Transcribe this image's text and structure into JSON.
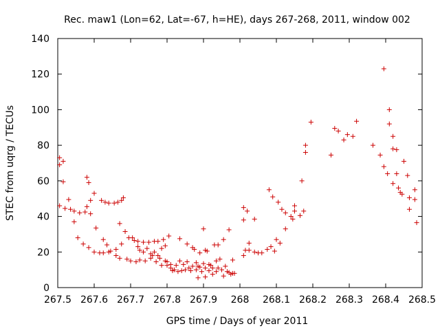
{
  "chart_data": {
    "type": "scatter",
    "title": "Rec. maw1 (Lon=62, Lat=-67, h=HE), days 267-268, 2011, window 002",
    "xlabel": "GPS time / Days of year 2011",
    "ylabel": "STEC from uqrg / TECUs",
    "xlim": [
      267.5,
      268.5
    ],
    "ylim": [
      0,
      140
    ],
    "xticks": [
      267.5,
      267.6,
      267.7,
      267.8,
      267.9,
      268,
      268.1,
      268.2,
      268.3,
      268.4,
      268.5
    ],
    "xtick_labels": [
      "267.5",
      "267.6",
      "267.7",
      "267.8",
      "267.9",
      "268",
      "268.1",
      "268.2",
      "268.3",
      "268.4",
      "268.5"
    ],
    "yticks": [
      0,
      20,
      40,
      60,
      80,
      100,
      120,
      140
    ],
    "ytick_labels": [
      "0",
      "20",
      "40",
      "60",
      "80",
      "100",
      "120",
      "140"
    ],
    "grid": false,
    "marker": "+",
    "color": "#cc0000",
    "points": [
      [
        267.505,
        73
      ],
      [
        267.505,
        69
      ],
      [
        267.515,
        71
      ],
      [
        267.515,
        59.5
      ],
      [
        267.505,
        46
      ],
      [
        267.52,
        44.5
      ],
      [
        267.53,
        49.5
      ],
      [
        267.535,
        44
      ],
      [
        267.545,
        43
      ],
      [
        267.545,
        37
      ],
      [
        267.555,
        28
      ],
      [
        267.56,
        42
      ],
      [
        267.57,
        24.5
      ],
      [
        267.575,
        42.5
      ],
      [
        267.58,
        62
      ],
      [
        267.585,
        59
      ],
      [
        267.58,
        45.5
      ],
      [
        267.59,
        49
      ],
      [
        267.59,
        41.5
      ],
      [
        267.585,
        22.5
      ],
      [
        267.6,
        53
      ],
      [
        267.605,
        33.5
      ],
      [
        267.6,
        20
      ],
      [
        267.615,
        19.5
      ],
      [
        267.62,
        49
      ],
      [
        267.625,
        27
      ],
      [
        267.63,
        48
      ],
      [
        267.635,
        24
      ],
      [
        267.625,
        19.5
      ],
      [
        267.64,
        47.5
      ],
      [
        267.64,
        20
      ],
      [
        267.645,
        20.5
      ],
      [
        267.655,
        47.5
      ],
      [
        267.66,
        21.5
      ],
      [
        267.665,
        48
      ],
      [
        267.66,
        18
      ],
      [
        267.67,
        36
      ],
      [
        267.675,
        24.5
      ],
      [
        267.67,
        16.5
      ],
      [
        267.675,
        49
      ],
      [
        267.68,
        50.5
      ],
      [
        267.685,
        31.5
      ],
      [
        267.69,
        16
      ],
      [
        267.695,
        28
      ],
      [
        267.7,
        15
      ],
      [
        267.705,
        28
      ],
      [
        267.71,
        26.5
      ],
      [
        267.715,
        14.5
      ],
      [
        267.72,
        26
      ],
      [
        267.72,
        23
      ],
      [
        267.725,
        21
      ],
      [
        267.725,
        15.5
      ],
      [
        267.735,
        25.5
      ],
      [
        267.735,
        20
      ],
      [
        267.74,
        15
      ],
      [
        267.745,
        22
      ],
      [
        267.75,
        25.5
      ],
      [
        267.755,
        19
      ],
      [
        267.755,
        16.5
      ],
      [
        267.76,
        18
      ],
      [
        267.765,
        26
      ],
      [
        267.765,
        20
      ],
      [
        267.77,
        14.5
      ],
      [
        267.775,
        26
      ],
      [
        267.775,
        18
      ],
      [
        267.78,
        16.5
      ],
      [
        267.785,
        12.5
      ],
      [
        267.785,
        22
      ],
      [
        267.79,
        27
      ],
      [
        267.795,
        23.5
      ],
      [
        267.795,
        15
      ],
      [
        267.8,
        14.5
      ],
      [
        267.8,
        12.5
      ],
      [
        267.805,
        29
      ],
      [
        267.81,
        13
      ],
      [
        267.81,
        11
      ],
      [
        267.815,
        9.5
      ],
      [
        267.82,
        10
      ],
      [
        267.825,
        12.5
      ],
      [
        267.83,
        9
      ],
      [
        267.835,
        27.5
      ],
      [
        267.835,
        15
      ],
      [
        267.84,
        9.5
      ],
      [
        267.845,
        13
      ],
      [
        267.85,
        10
      ],
      [
        267.855,
        24.5
      ],
      [
        267.855,
        14.5
      ],
      [
        267.86,
        11
      ],
      [
        267.865,
        9.5
      ],
      [
        267.87,
        22.5
      ],
      [
        267.87,
        12
      ],
      [
        267.875,
        21.5
      ],
      [
        267.88,
        10
      ],
      [
        267.88,
        14
      ],
      [
        267.885,
        12
      ],
      [
        267.885,
        5.5
      ],
      [
        267.89,
        19.5
      ],
      [
        267.89,
        11.5
      ],
      [
        267.895,
        9
      ],
      [
        267.9,
        33
      ],
      [
        267.9,
        13.5
      ],
      [
        267.905,
        21
      ],
      [
        267.905,
        11
      ],
      [
        267.905,
        6
      ],
      [
        267.91,
        20.5
      ],
      [
        267.915,
        13
      ],
      [
        267.915,
        9.5
      ],
      [
        267.92,
        12.5
      ],
      [
        267.925,
        11
      ],
      [
        267.925,
        7.5
      ],
      [
        267.93,
        24
      ],
      [
        267.935,
        9
      ],
      [
        267.935,
        15
      ],
      [
        267.94,
        24
      ],
      [
        267.94,
        11
      ],
      [
        267.945,
        16
      ],
      [
        267.95,
        10
      ],
      [
        267.955,
        6.5
      ],
      [
        267.955,
        27
      ],
      [
        267.96,
        12
      ],
      [
        267.965,
        9
      ],
      [
        267.97,
        32.5
      ],
      [
        267.97,
        8.5
      ],
      [
        267.975,
        7.5
      ],
      [
        267.98,
        8
      ],
      [
        267.985,
        8
      ],
      [
        267.98,
        15.5
      ],
      [
        268.01,
        45
      ],
      [
        268.01,
        38
      ],
      [
        268.01,
        18
      ],
      [
        268.015,
        21
      ],
      [
        268.02,
        43
      ],
      [
        268.025,
        25
      ],
      [
        268.025,
        21
      ],
      [
        268.04,
        38.5
      ],
      [
        268.04,
        20
      ],
      [
        268.05,
        19.5
      ],
      [
        268.06,
        19.5
      ],
      [
        268.075,
        21.5
      ],
      [
        268.085,
        23
      ],
      [
        268.08,
        55
      ],
      [
        268.09,
        51
      ],
      [
        268.095,
        20.5
      ],
      [
        268.1,
        27
      ],
      [
        268.105,
        48
      ],
      [
        268.11,
        25
      ],
      [
        268.115,
        44
      ],
      [
        268.125,
        42
      ],
      [
        268.125,
        33
      ],
      [
        268.14,
        40
      ],
      [
        268.145,
        38.5
      ],
      [
        268.15,
        46
      ],
      [
        268.15,
        43
      ],
      [
        268.165,
        40.5
      ],
      [
        268.17,
        60
      ],
      [
        268.175,
        43
      ],
      [
        268.18,
        80
      ],
      [
        268.18,
        76
      ],
      [
        268.195,
        93
      ],
      [
        268.25,
        74.5
      ],
      [
        268.26,
        89.5
      ],
      [
        268.27,
        88
      ],
      [
        268.285,
        83
      ],
      [
        268.295,
        86
      ],
      [
        268.31,
        85
      ],
      [
        268.32,
        93.5
      ],
      [
        268.365,
        80
      ],
      [
        268.385,
        74.5
      ],
      [
        268.395,
        123
      ],
      [
        268.395,
        68
      ],
      [
        268.405,
        64
      ],
      [
        268.41,
        100
      ],
      [
        268.41,
        92
      ],
      [
        268.42,
        85
      ],
      [
        268.42,
        78
      ],
      [
        268.42,
        58.5
      ],
      [
        268.43,
        77.5
      ],
      [
        268.43,
        64
      ],
      [
        268.435,
        56
      ],
      [
        268.44,
        53.5
      ],
      [
        268.445,
        52.5
      ],
      [
        268.45,
        71
      ],
      [
        268.46,
        63
      ],
      [
        268.465,
        50.5
      ],
      [
        268.465,
        44
      ],
      [
        268.48,
        55
      ],
      [
        268.48,
        49.5
      ],
      [
        268.485,
        36.5
      ]
    ]
  }
}
